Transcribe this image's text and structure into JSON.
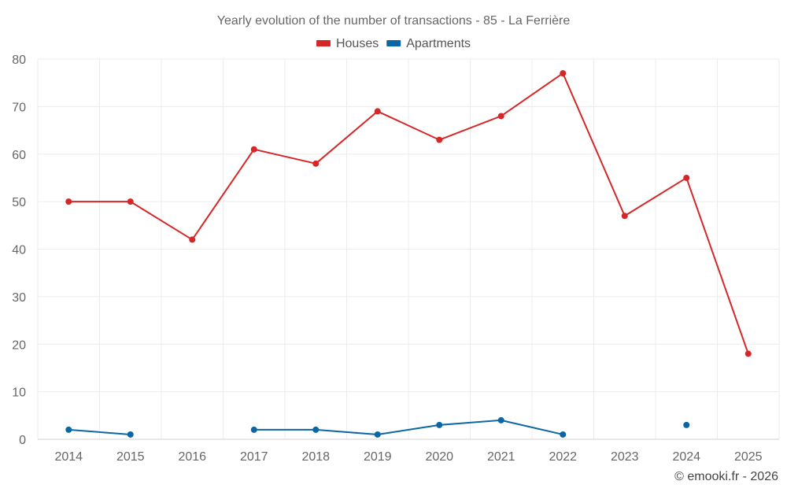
{
  "chart_data": {
    "type": "line",
    "title": "Yearly evolution of the number of transactions - 85 - La Ferrière",
    "categories": [
      "2014",
      "2015",
      "2016",
      "2017",
      "2018",
      "2019",
      "2020",
      "2021",
      "2022",
      "2023",
      "2024",
      "2025"
    ],
    "ylim": [
      0,
      80
    ],
    "yticks": [
      0,
      10,
      20,
      30,
      40,
      50,
      60,
      70,
      80
    ],
    "grid": true,
    "legend_position": "top-center",
    "series": [
      {
        "name": "Houses",
        "color": "#d62728",
        "values": [
          50,
          50,
          42,
          61,
          58,
          69,
          63,
          68,
          77,
          47,
          55,
          18
        ]
      },
      {
        "name": "Apartments",
        "color": "#0a67a3",
        "values": [
          2,
          1,
          null,
          2,
          2,
          1,
          3,
          4,
          1,
          null,
          3,
          null
        ]
      }
    ],
    "credit": "© emooki.fr - 2026"
  }
}
